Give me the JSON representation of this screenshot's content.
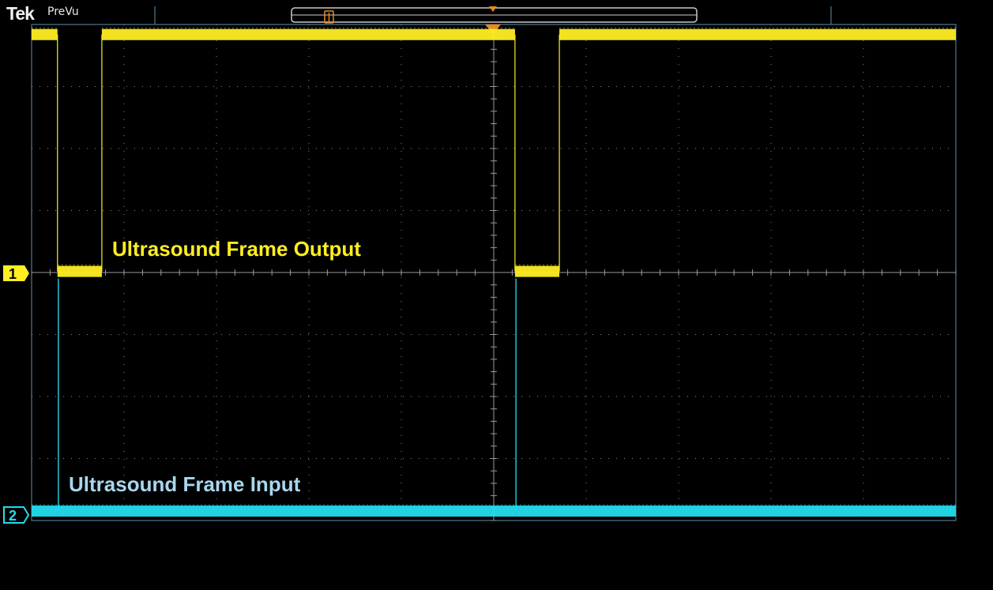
{
  "header": {
    "brand": "Tek",
    "mode": "PreVu"
  },
  "traces": [
    {
      "id": "ch1",
      "marker": "1",
      "name": "Ultrasound Frame Output",
      "color": "#ffee22"
    },
    {
      "id": "ch2",
      "marker": "2",
      "name": "Ultrasound Frame Input",
      "color": "#22ddee"
    }
  ],
  "colors": {
    "background": "#000000",
    "graticule": "#8a8a8a",
    "border": "#5f8fb0",
    "trigger": "#e8891e"
  },
  "chart_data": {
    "type": "line",
    "x_divisions": 10,
    "y_divisions": 8,
    "grid": true,
    "series": [
      {
        "name": "Ultrasound Frame Output",
        "channel": 1,
        "x": [
          0,
          0.28,
          0.28,
          0.76,
          0.76,
          5.23,
          5.23,
          5.71,
          5.71,
          10
        ],
        "y": [
          3.85,
          3.85,
          0.03,
          0.03,
          3.85,
          3.85,
          0.03,
          0.03,
          3.85,
          3.85
        ]
      },
      {
        "name": "Ultrasound Frame Input",
        "channel": 2,
        "x": [
          0,
          0.29,
          0.29,
          0.29,
          5.24,
          5.24,
          5.24,
          10
        ],
        "y": [
          0.05,
          0.05,
          3.8,
          0.05,
          0.05,
          3.8,
          0.05,
          0.05
        ]
      }
    ]
  }
}
